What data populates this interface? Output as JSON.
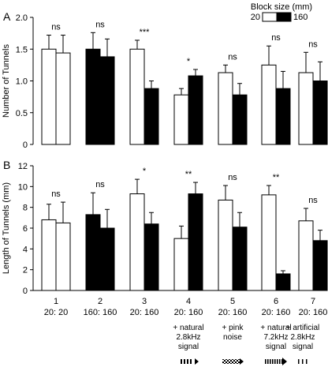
{
  "legend": {
    "title": "Block size (mm)",
    "items": [
      {
        "label": "20",
        "color": "#ffffff"
      },
      {
        "label": "160",
        "color": "#000000"
      }
    ]
  },
  "chart_data": [
    {
      "panel_label": "A",
      "type": "bar",
      "ylabel": "Number of Tunnels",
      "ylim": [
        0,
        2.0
      ],
      "yticks": [
        "0",
        "0.5",
        "1.0",
        "1.5",
        "2.0"
      ],
      "yticks_values": [
        0,
        0.5,
        1.0,
        1.5,
        2.0
      ],
      "groups": [
        {
          "bars": [
            {
              "fill": "white",
              "value": 1.5,
              "err": 0.22
            },
            {
              "fill": "white",
              "value": 1.44,
              "err": 0.28
            }
          ],
          "sig": "ns"
        },
        {
          "bars": [
            {
              "fill": "black",
              "value": 1.5,
              "err": 0.26
            },
            {
              "fill": "black",
              "value": 1.38,
              "err": 0.28
            }
          ],
          "sig": "ns"
        },
        {
          "bars": [
            {
              "fill": "white",
              "value": 1.5,
              "err": 0.14
            },
            {
              "fill": "black",
              "value": 0.88,
              "err": 0.12
            }
          ],
          "sig": "***"
        },
        {
          "bars": [
            {
              "fill": "white",
              "value": 0.78,
              "err": 0.1
            },
            {
              "fill": "black",
              "value": 1.08,
              "err": 0.1
            }
          ],
          "sig": "*"
        },
        {
          "bars": [
            {
              "fill": "white",
              "value": 1.13,
              "err": 0.12
            },
            {
              "fill": "black",
              "value": 0.78,
              "err": 0.18
            }
          ],
          "sig": "ns"
        },
        {
          "bars": [
            {
              "fill": "white",
              "value": 1.25,
              "err": 0.3
            },
            {
              "fill": "black",
              "value": 0.88,
              "err": 0.27
            }
          ],
          "sig": "ns"
        },
        {
          "bars": [
            {
              "fill": "white",
              "value": 1.13,
              "err": 0.32
            },
            {
              "fill": "black",
              "value": 1.0,
              "err": 0.3
            }
          ],
          "sig": "ns"
        }
      ]
    },
    {
      "panel_label": "B",
      "type": "bar",
      "ylabel": "Length of Tunnels (mm)",
      "ylim": [
        0,
        12
      ],
      "yticks": [
        "0",
        "2",
        "4",
        "6",
        "8",
        "10",
        "12"
      ],
      "yticks_values": [
        0,
        2,
        4,
        6,
        8,
        10,
        12
      ],
      "groups": [
        {
          "bars": [
            {
              "fill": "white",
              "value": 6.8,
              "err": 1.5
            },
            {
              "fill": "white",
              "value": 6.5,
              "err": 2.0
            }
          ],
          "sig": "ns"
        },
        {
          "bars": [
            {
              "fill": "black",
              "value": 7.3,
              "err": 2.1
            },
            {
              "fill": "black",
              "value": 6.0,
              "err": 1.8
            }
          ],
          "sig": "ns"
        },
        {
          "bars": [
            {
              "fill": "white",
              "value": 9.3,
              "err": 1.4
            },
            {
              "fill": "black",
              "value": 6.4,
              "err": 1.1
            }
          ],
          "sig": "*"
        },
        {
          "bars": [
            {
              "fill": "white",
              "value": 5.0,
              "err": 1.2
            },
            {
              "fill": "black",
              "value": 9.3,
              "err": 1.1
            }
          ],
          "sig": "**"
        },
        {
          "bars": [
            {
              "fill": "white",
              "value": 8.7,
              "err": 1.4
            },
            {
              "fill": "black",
              "value": 6.1,
              "err": 1.4
            }
          ],
          "sig": "ns"
        },
        {
          "bars": [
            {
              "fill": "white",
              "value": 9.2,
              "err": 0.9
            },
            {
              "fill": "black",
              "value": 1.6,
              "err": 0.3
            }
          ],
          "sig": "**"
        },
        {
          "bars": [
            {
              "fill": "white",
              "value": 6.7,
              "err": 1.2
            },
            {
              "fill": "black",
              "value": 4.8,
              "err": 1.0
            }
          ],
          "sig": "ns"
        }
      ]
    }
  ],
  "categories": [
    {
      "number": "1",
      "sizes": "20: 20"
    },
    {
      "number": "2",
      "sizes": "160: 160"
    },
    {
      "number": "3",
      "sizes": "20: 160"
    },
    {
      "number": "4",
      "sizes": "20: 160"
    },
    {
      "number": "5",
      "sizes": "20: 160"
    },
    {
      "number": "6",
      "sizes": "20: 160"
    },
    {
      "number": "7",
      "sizes": "20: 160"
    }
  ],
  "signals": [
    {
      "col": 3,
      "lines": [
        "+ natural",
        "2.8kHz",
        "signal"
      ],
      "icon": "natural-2.8khz-pattern-icon"
    },
    {
      "col": 4,
      "lines": [
        "+ pink",
        "noise"
      ],
      "icon": "pink-noise-pattern-icon"
    },
    {
      "col": 5,
      "lines": [
        "+ natural",
        "7.2kHz",
        "signal"
      ],
      "icon": "natural-7.2khz-pattern-icon"
    },
    {
      "col": 6,
      "lines": [
        "+ artificial",
        "2.8kHz",
        "signal"
      ],
      "icon": "artificial-2.8khz-pattern-icon"
    }
  ]
}
